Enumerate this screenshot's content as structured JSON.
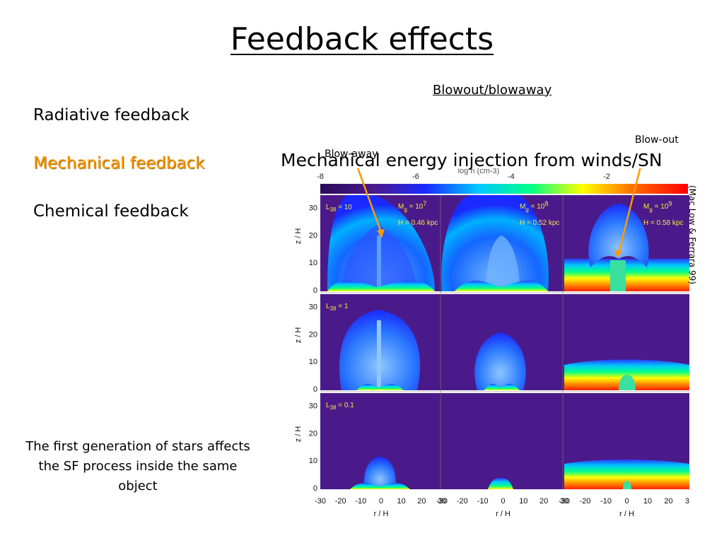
{
  "slide": {
    "title": "Feedback effects",
    "items": [
      "Radiative feedback",
      "Mechanical feedback",
      "Chemical feedback"
    ],
    "highlight_index": 1,
    "subtitle": "Mechanical energy injection from winds/SN",
    "figure_heading": "Blowout/blowaway",
    "blowaway_label": "Blow-away",
    "blowout_label": "Blow-out",
    "credit": "(Mac Low & Ferrara 99)",
    "caption": "The first generation of stars affects the SF process inside the same object",
    "highlight_color": "#ff9900"
  },
  "figure": {
    "colorbar_ticks": [
      "-8",
      "-6",
      "-4",
      "-2"
    ],
    "colorbar_label": "log n (cm-3)",
    "columns": [
      {
        "mass_label": "M",
        "mass_sub": "g",
        "mass_value": "= 10",
        "mass_exp": "7",
        "scale_height": "H = 0.46 kpc"
      },
      {
        "mass_label": "M",
        "mass_sub": "g",
        "mass_value": "= 10",
        "mass_exp": "8",
        "scale_height": "H = 0.52 kpc"
      },
      {
        "mass_label": "M",
        "mass_sub": "g",
        "mass_value": "= 10",
        "mass_exp": "9",
        "scale_height": "H = 0.58 kpc"
      }
    ],
    "rows": [
      {
        "lum_label": "L",
        "lum_sub": "38",
        "lum_value": "= 10"
      },
      {
        "lum_label": "L",
        "lum_sub": "38",
        "lum_value": "= 1"
      },
      {
        "lum_label": "L",
        "lum_sub": "38",
        "lum_value": "= 0.1"
      }
    ],
    "y_ticks": [
      "30",
      "20",
      "10",
      "0"
    ],
    "y_label": "z / H",
    "x_ticks": [
      "-30",
      "-20",
      "-10",
      "0",
      "10",
      "20",
      "30"
    ],
    "x_label": "r / H",
    "colors": {
      "background": "#4b1a8a",
      "colorbar": [
        "#2a0a5a",
        "#4b1a8a",
        "#1a2aff",
        "#00c8ff",
        "#00ff88",
        "#ffff00",
        "#ff6600",
        "#ff0000"
      ],
      "arrow": "#ff9900"
    }
  }
}
